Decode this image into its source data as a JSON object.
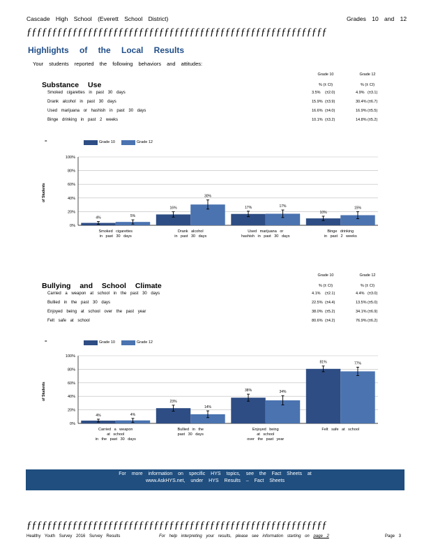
{
  "header": {
    "school": "Cascade High School (Everett School District)",
    "grades": "Grades 10 and 12"
  },
  "divider": "ƒƒƒƒƒƒƒƒƒƒƒƒƒƒƒƒƒƒƒƒƒƒƒƒƒƒƒƒƒƒƒƒƒƒƒƒƒƒƒƒƒƒƒƒƒƒƒƒƒƒƒƒƒƒƒƒƒƒƒƒƒƒƒƒƒƒƒƒƒƒ",
  "title": "Highlights of the Local Results",
  "subtitle": "Your students reported the following behaviors and attitudes:",
  "columns": {
    "g10": "Grade 10",
    "g12": "Grade 12",
    "ci": "% (± CI)"
  },
  "substance": {
    "heading": "Substance Use",
    "rows": [
      {
        "label": "Smoked cigarettes in past 30 days",
        "g10": "3.5%",
        "g10ci": "(±2.0)",
        "g12": "4.9%",
        "g12ci": "(±3.1)"
      },
      {
        "label": "Drank alcohol in past 30 days",
        "g10": "15.9%",
        "g10ci": "(±3.9)",
        "g12": "30.4%",
        "g12ci": "(±6.7)"
      },
      {
        "label": "Used marijuana or hashish in past 30 days",
        "g10": "16.6%",
        "g10ci": "(±4.0)",
        "g12": "16.9%",
        "g12ci": "(±5.5)"
      },
      {
        "label": "Binge drinking in past 2 weeks",
        "g10": "10.1%",
        "g10ci": "(±3.2)",
        "g12": "14.8%",
        "g12ci": "(±5.2)"
      }
    ]
  },
  "bullying": {
    "heading": "Bullying and School Climate",
    "rows": [
      {
        "label": "Carried a weapon at school in the past 30 days",
        "g10": "4.1%",
        "g10ci": "(±2.1)",
        "g12": "4.4%",
        "g12ci": "(±3.0)"
      },
      {
        "label": "Bullied in the past 30 days",
        "g10": "22.5%",
        "g10ci": "(±4.4)",
        "g12": "13.5%",
        "g12ci": "(±5.0)"
      },
      {
        "label": "Enjoyed being at school over the past year",
        "g10": "38.0%",
        "g10ci": "(±5.2)",
        "g12": "34.1%",
        "g12ci": "(±6.9)"
      },
      {
        "label": "Felt safe at school",
        "g10": "80.6%",
        "g10ci": "(±4.2)",
        "g12": "76.9%",
        "g12ci": "(±6.2)"
      }
    ]
  },
  "chart_data": [
    {
      "type": "bar",
      "legend_mark": "=",
      "categories": [
        [
          "Smoked cigarettes",
          "in past 30 days"
        ],
        [
          "Drank alcohol",
          "in past 30 days"
        ],
        [
          "Used marijuana or",
          "hashish in past 30 days"
        ],
        [
          "Binge drinking",
          "in past 2 weeks"
        ]
      ],
      "series": [
        {
          "name": "Grade 10",
          "values": [
            3.5,
            15.9,
            16.6,
            10.1
          ],
          "ci": [
            2.0,
            3.9,
            4.0,
            3.2
          ],
          "labels": [
            "4%",
            "16%",
            "17%",
            "10%"
          ],
          "color": "#2e4d84"
        },
        {
          "name": "Grade 12",
          "values": [
            4.9,
            30.4,
            16.9,
            14.8
          ],
          "ci": [
            3.1,
            6.7,
            5.5,
            5.2
          ],
          "labels": [
            "5%",
            "30%",
            "17%",
            "15%"
          ],
          "color": "#4a73b0"
        }
      ],
      "yticks": [
        "0%",
        "20%",
        "40%",
        "60%",
        "80%",
        "100%"
      ],
      "ylim": [
        0,
        100
      ],
      "ylabel": "of Students",
      "grid": true
    },
    {
      "type": "bar",
      "legend_mark": "=",
      "categories": [
        [
          "Carried a weapon",
          "at school",
          "in the past 30 days"
        ],
        [
          "Bullied in the",
          "past 30 days"
        ],
        [
          "Enjoyed being",
          "at school",
          "over the past year"
        ],
        [
          "Felt safe at school"
        ]
      ],
      "series": [
        {
          "name": "Grade 10",
          "values": [
            4.1,
            22.5,
            38.0,
            80.6
          ],
          "ci": [
            2.1,
            4.4,
            5.2,
            4.2
          ],
          "labels": [
            "4%",
            "23%",
            "38%",
            "81%"
          ],
          "color": "#2e4d84"
        },
        {
          "name": "Grade 12",
          "values": [
            4.4,
            13.5,
            34.1,
            76.9
          ],
          "ci": [
            3.0,
            5.0,
            6.9,
            6.2
          ],
          "labels": [
            "4%",
            "14%",
            "34%",
            "77%"
          ],
          "color": "#4a73b0"
        }
      ],
      "yticks": [
        "0%",
        "20%",
        "40%",
        "60%",
        "80%",
        "100%"
      ],
      "ylim": [
        0,
        100
      ],
      "ylabel": "of Students",
      "grid": true
    }
  ],
  "infobox": {
    "line1": "For more information on specific HYS topics, see the Fact Sheets at",
    "line2": "www.AskHYS.net, under HYS Results – Fact Sheets"
  },
  "footer": {
    "left": "Healthy Youth Survey 2016 Survey Results",
    "middle": "For help interpreting your results, please see information starting on",
    "page_ref": "page 2",
    "right": "Page 3"
  }
}
